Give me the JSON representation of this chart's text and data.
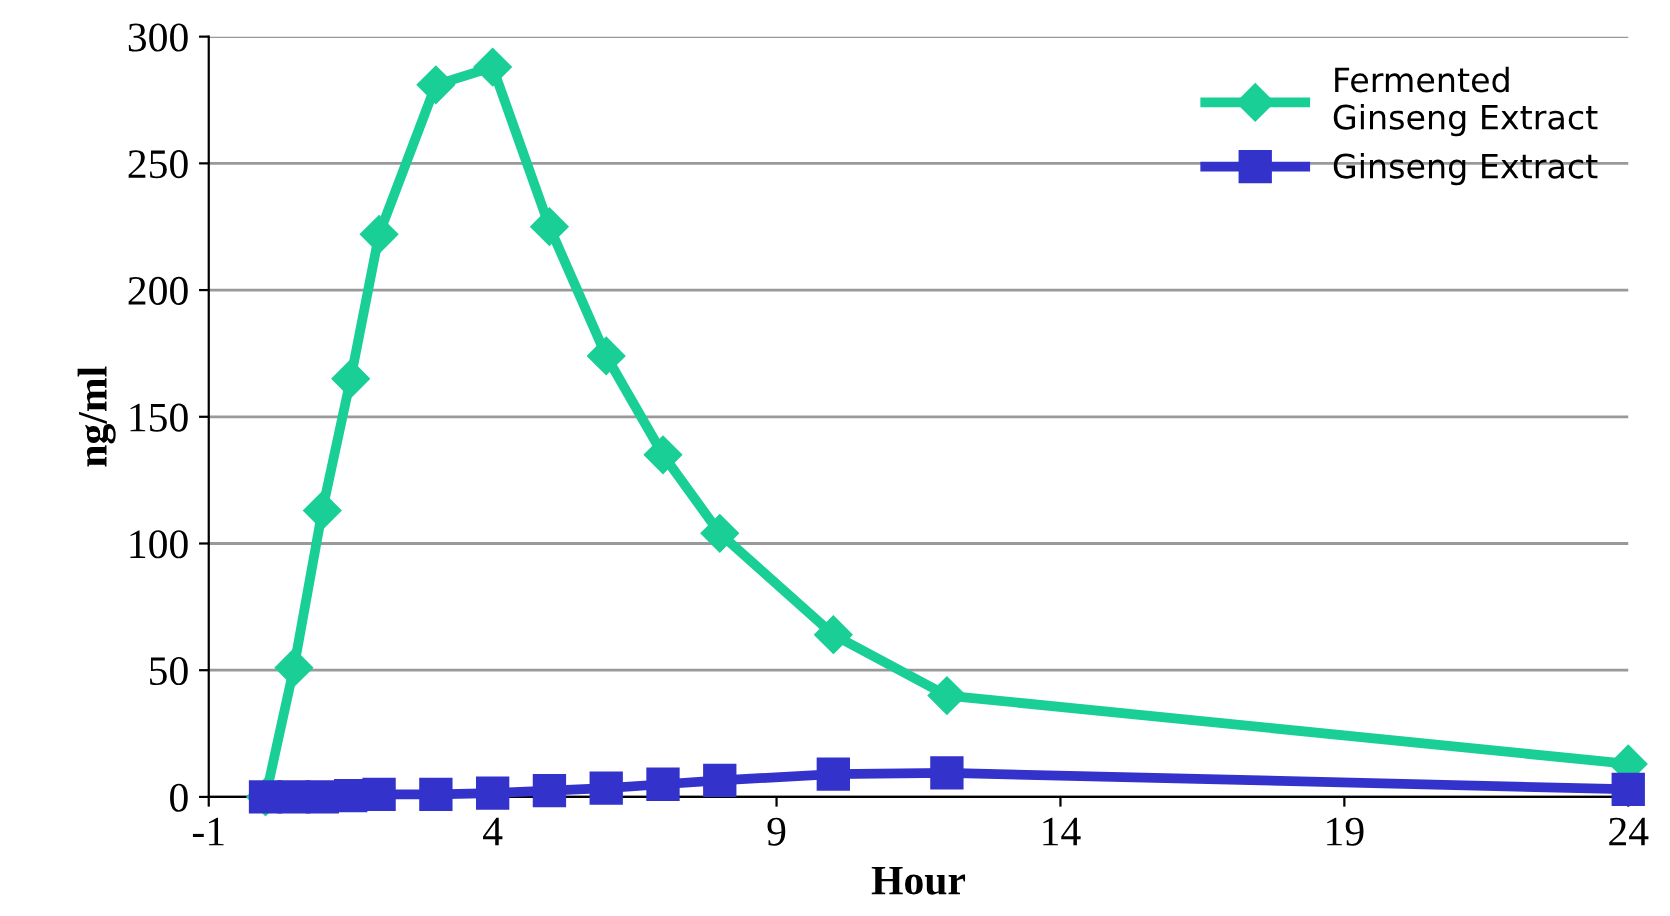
{
  "chart_data": {
    "type": "line",
    "xlabel": "Hour",
    "ylabel": "ng/ml",
    "xlim": [
      -1,
      24
    ],
    "xticks": [
      -1,
      4,
      9,
      14,
      19,
      24
    ],
    "ylim": [
      0,
      300
    ],
    "yticks": [
      0,
      50,
      100,
      150,
      200,
      250,
      300
    ],
    "grid": "y",
    "legend": "top right",
    "series": [
      {
        "name": "Fermented\nGinseng Extract",
        "color": "#19cf96",
        "marker": "diamond",
        "x": [
          0,
          0.5,
          1,
          1.5,
          2,
          3,
          4,
          5,
          6,
          7,
          8,
          10,
          12,
          24
        ],
        "values": [
          0,
          51,
          113,
          165,
          222,
          281,
          288,
          225,
          174,
          135,
          104,
          64,
          40,
          13
        ]
      },
      {
        "name": "Ginseng Extract",
        "color": "#3333cc",
        "marker": "square",
        "x": [
          0,
          0.5,
          1,
          1.5,
          2,
          3,
          4,
          5,
          6,
          7,
          8,
          10,
          12,
          24
        ],
        "values": [
          0,
          0,
          0,
          0.5,
          1,
          1,
          1.5,
          2.5,
          3.5,
          5,
          6.5,
          9,
          9.5,
          3
        ]
      }
    ]
  }
}
